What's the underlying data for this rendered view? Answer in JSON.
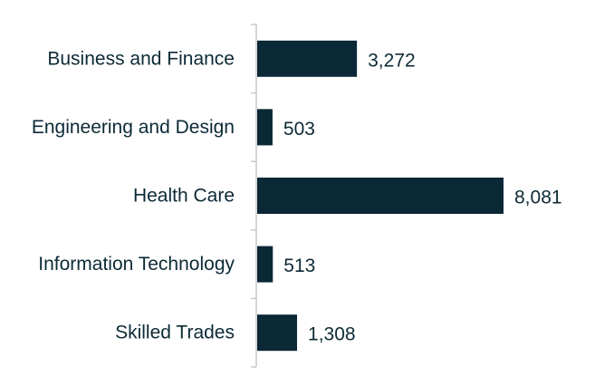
{
  "chart_data": {
    "type": "bar",
    "orientation": "horizontal",
    "categories": [
      "Business and Finance",
      "Engineering and Design",
      "Health Care",
      "Information Technology",
      "Skilled Trades"
    ],
    "values": [
      3272,
      503,
      8081,
      513,
      1308
    ],
    "value_labels": [
      "3,272",
      "503",
      "8,081",
      "513",
      "1,308"
    ],
    "title": "",
    "xlabel": "",
    "ylabel": "",
    "xlim": [
      0,
      8500
    ],
    "grid": false,
    "legend": "none",
    "bar_color": "#0a2836"
  }
}
